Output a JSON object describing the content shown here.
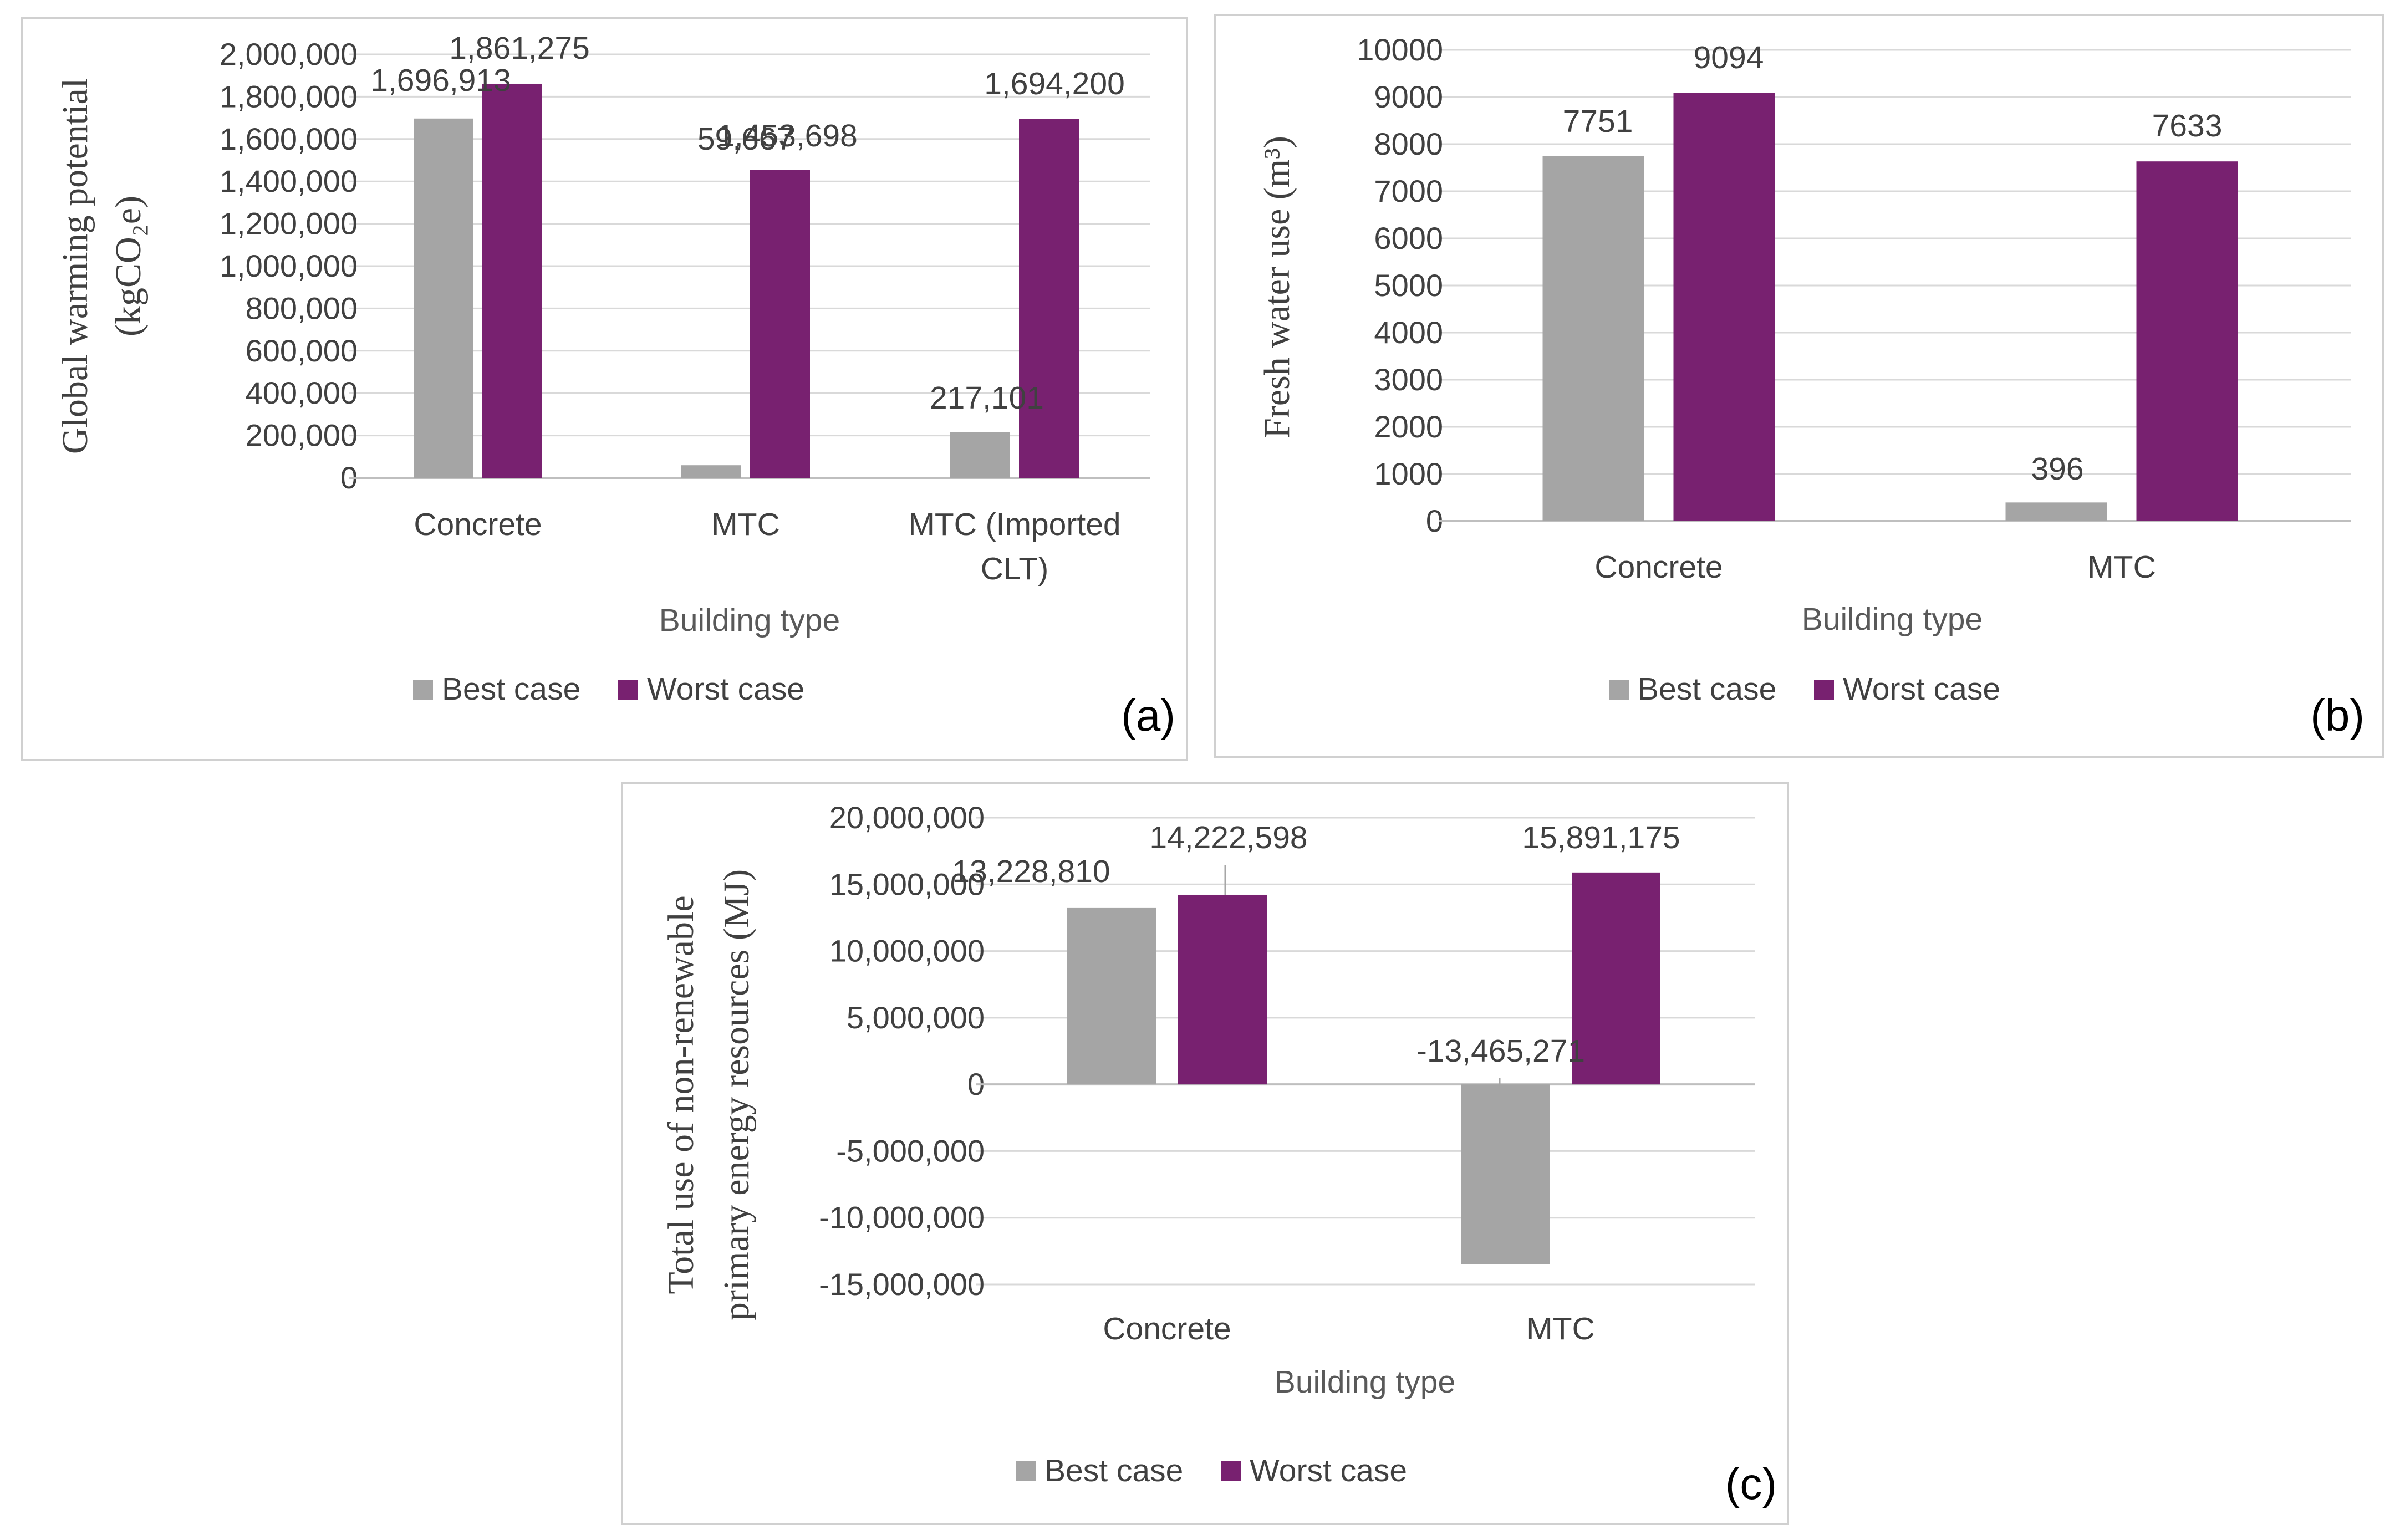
{
  "colors": {
    "best": "#A5A5A5",
    "worst": "#782170",
    "grid": "#D9D9D9",
    "frame": "#D0D0D0"
  },
  "chart_data": [
    {
      "type": "bar",
      "panel_label": "(a)",
      "categories": [
        "Concrete",
        "MTC",
        "MTC (Imported CLT)"
      ],
      "series": [
        {
          "name": "Best case",
          "values": [
            1696913,
            59667,
            217101
          ],
          "labels": [
            "1,696,913",
            "59,667",
            "217,101"
          ]
        },
        {
          "name": "Worst case",
          "values": [
            1861275,
            1453698,
            1694200
          ],
          "labels": [
            "1,861,275",
            "1,453,698",
            "1,694,200"
          ]
        }
      ],
      "ylabel_lines": [
        "Global warming potential",
        "(kgCO₂e)"
      ],
      "xlabel": "Building type",
      "ylim": [
        0,
        2000000
      ],
      "yticks": [
        "2,000,000",
        "1,800,000",
        "1,600,000",
        "1,400,000",
        "1,200,000",
        "1,000,000",
        "800,000",
        "600,000",
        "400,000",
        "200,000",
        "0"
      ],
      "grid": true,
      "legend": "bottom"
    },
    {
      "type": "bar",
      "panel_label": "(b)",
      "categories": [
        "Concrete",
        "MTC"
      ],
      "series": [
        {
          "name": "Best case",
          "values": [
            7751,
            396
          ],
          "labels": [
            "7751",
            "396"
          ]
        },
        {
          "name": "Worst case",
          "values": [
            9094,
            7633
          ],
          "labels": [
            "9094",
            "7633"
          ]
        }
      ],
      "ylabel_lines": [
        "Fresh water use (m³)"
      ],
      "xlabel": "Building type",
      "ylim": [
        0,
        10000
      ],
      "yticks": [
        "10000",
        "9000",
        "8000",
        "7000",
        "6000",
        "5000",
        "4000",
        "3000",
        "2000",
        "1000",
        "0"
      ],
      "grid": true,
      "legend": "bottom"
    },
    {
      "type": "bar",
      "panel_label": "(c)",
      "categories": [
        "Concrete",
        "MTC"
      ],
      "series": [
        {
          "name": "Best case",
          "values": [
            13228810,
            -13465271
          ],
          "labels": [
            "13,228,810",
            "-13,465,271"
          ]
        },
        {
          "name": "Worst case",
          "values": [
            14222598,
            15891175
          ],
          "labels": [
            "14,222,598",
            "15,891,175"
          ]
        }
      ],
      "ylabel_lines": [
        "Total use of non-renewable",
        "primary energy resources (MJ)"
      ],
      "xlabel": "Building type",
      "ylim": [
        -15000000,
        20000000
      ],
      "yticks": [
        "20,000,000",
        "15,000,000",
        "10,000,000",
        "5,000,000",
        "0",
        "-5,000,000",
        "-10,000,000",
        "-15,000,000"
      ],
      "grid": true,
      "legend": "bottom"
    }
  ]
}
